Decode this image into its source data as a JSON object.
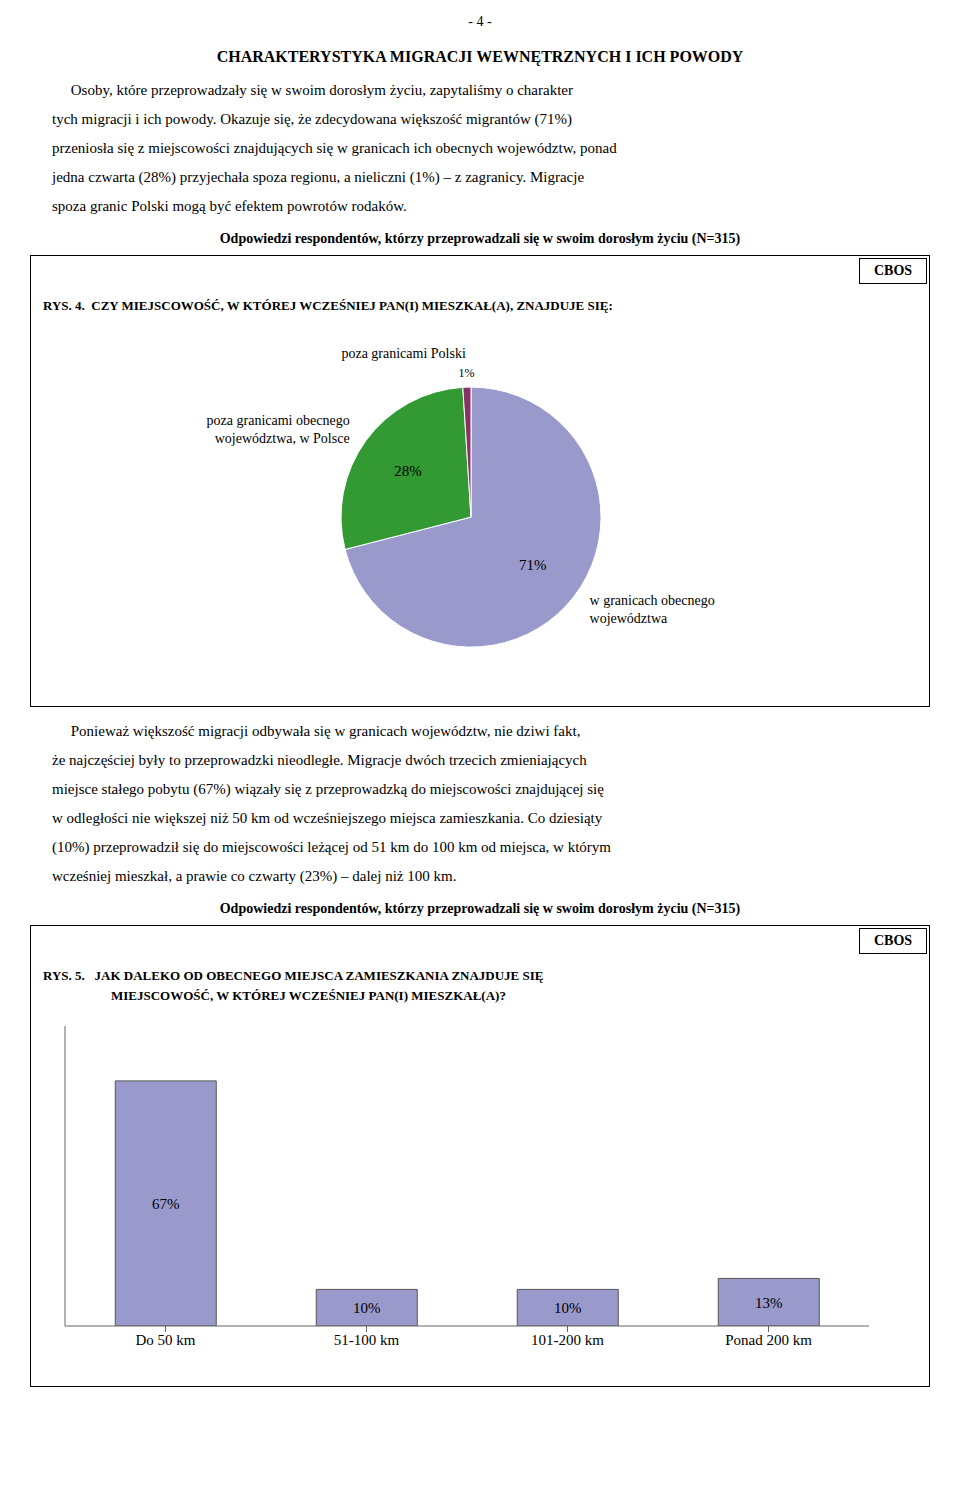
{
  "chart_data": [
    {
      "type": "pie",
      "title": "RYS. 4.  CZY MIEJSCOWOŚĆ, W KTÓREJ WCZEŚNIEJ PAN(I) MIESZKAŁ(A), ZNAJDUJE SIĘ:",
      "subtitle": "Odpowiedzi respondentów, którzy przeprowadzali się w swoim dorosłym życiu (N=315)",
      "source": "CBOS",
      "annotations": [
        "- 4 -",
        "CHARAKTERYSTYKA MIGRACJI WEWNĘTRZNYCH I ICH POWODY",
        "     Osoby, które przeprowadzały się w swoim dorosłym życiu, zapytaliśmy o charakter",
        "tych migracji i ich powody. Okazuje się, że zdecydowana większość migrantów (71%)",
        "przeniosła się z miejscowości znajdujących się w granicach ich obecnych województw, ponad",
        "jedna czwarta (28%) przyjechała spoza regionu, a nieliczni (1%) – z zagranicy. Migracje",
        "spoza granic Polski mogą być efektem powrotów rodaków."
      ],
      "categories": [
        "w granicach obecnego\nwojewództwa",
        "poza granicami obecnego\nwojewództwa, w Polsce",
        "poza granicami Polski"
      ],
      "values": [
        71,
        28,
        1
      ],
      "value_labels": [
        "71%",
        "28%",
        "1%"
      ],
      "colors": [
        "#9999cc",
        "#339933",
        "#883366"
      ],
      "data_labels": true
    },
    {
      "type": "bar",
      "title": "RYS. 5.   JAK DALEKO OD OBECNEGO MIEJSCA ZAMIESZKANIA ZNAJDUJE SIĘ\nMIEJSCOWOŚĆ, W KTÓREJ WCZEŚNIEJ PAN(I) MIESZKAŁ(A)?",
      "subtitle": "Odpowiedzi respondentów, którzy przeprowadzali się w swoim dorosłym życiu (N=315)",
      "source": "CBOS",
      "annotations": [
        "     Ponieważ większość migracji odbywała się w granicach województw, nie dziwi fakt,",
        "że najczęściej były to przeprowadzki nieodległe. Migracje dwóch trzecich zmieniających",
        "miejsce stałego pobytu (67%) wiązały się z przeprowadzką do miejscowości znajdującej się",
        "w odległości nie większej niż 50 km od wcześniejszego miejsca zamieszkania. Co dziesiąty",
        "(10%) przeprowadził się do miejscowości leżącej od 51 km do 100 km od miejsca, w którym",
        "wcześniej mieszkał, a prawie co czwarty (23%) – dalej niż 100 km."
      ],
      "categories": [
        "Do 50 km",
        "51-100 km",
        "101-200 km",
        "Ponad 200 km"
      ],
      "values": [
        67,
        10,
        10,
        13
      ],
      "value_labels": [
        "67%",
        "10%",
        "10%",
        "13%"
      ],
      "color": "#9999cc",
      "ylim": [
        0,
        82
      ],
      "tick_labels": "x",
      "grid": false,
      "data_labels": true
    }
  ]
}
